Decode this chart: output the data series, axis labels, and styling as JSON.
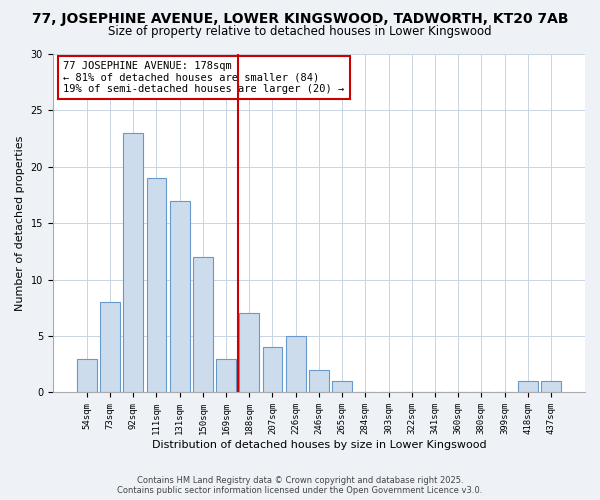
{
  "title": "77, JOSEPHINE AVENUE, LOWER KINGSWOOD, TADWORTH, KT20 7AB",
  "subtitle": "Size of property relative to detached houses in Lower Kingswood",
  "xlabel": "Distribution of detached houses by size in Lower Kingswood",
  "ylabel": "Number of detached properties",
  "bar_labels": [
    "54sqm",
    "73sqm",
    "92sqm",
    "111sqm",
    "131sqm",
    "150sqm",
    "169sqm",
    "188sqm",
    "207sqm",
    "226sqm",
    "246sqm",
    "265sqm",
    "284sqm",
    "303sqm",
    "322sqm",
    "341sqm",
    "360sqm",
    "380sqm",
    "399sqm",
    "418sqm",
    "437sqm"
  ],
  "bar_values": [
    3,
    8,
    23,
    19,
    17,
    12,
    3,
    7,
    4,
    5,
    2,
    1,
    0,
    0,
    0,
    0,
    0,
    0,
    0,
    1,
    1
  ],
  "bar_color": "#ccdcec",
  "bar_edge_color": "#6699cc",
  "vline_color": "#cc0000",
  "vline_x_idx": 7,
  "ylim": [
    0,
    30
  ],
  "yticks": [
    0,
    5,
    10,
    15,
    20,
    25,
    30
  ],
  "annotation_line1": "77 JOSEPHINE AVENUE: 178sqm",
  "annotation_line2": "← 81% of detached houses are smaller (84)",
  "annotation_line3": "19% of semi-detached houses are larger (20) →",
  "footer1": "Contains HM Land Registry data © Crown copyright and database right 2025.",
  "footer2": "Contains public sector information licensed under the Open Government Licence v3.0.",
  "bg_color": "#eef2f7",
  "plot_bg_color": "#ffffff",
  "grid_color": "#c8d4e0",
  "title_fontsize": 10,
  "subtitle_fontsize": 8.5,
  "ylabel_fontsize": 8,
  "xlabel_fontsize": 8,
  "tick_fontsize": 6.5,
  "footer_fontsize": 6
}
